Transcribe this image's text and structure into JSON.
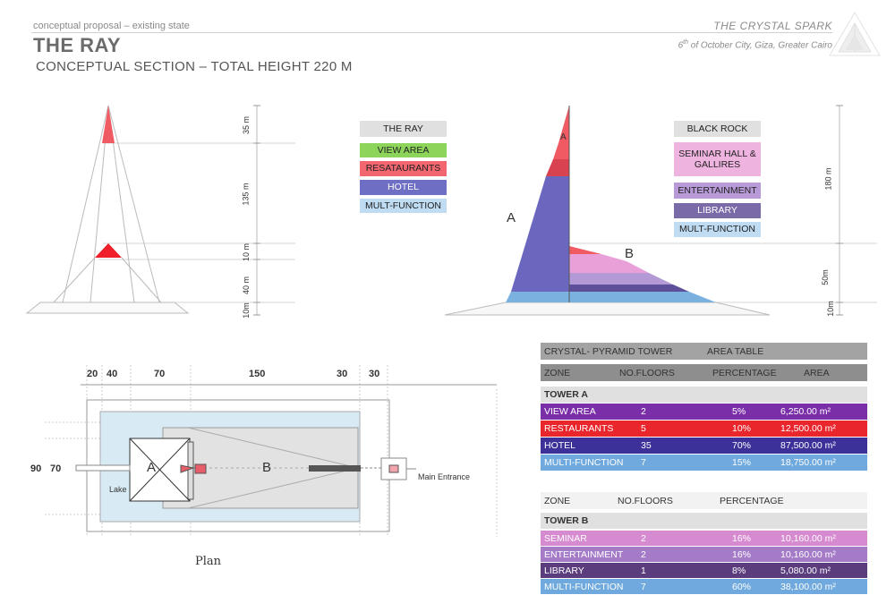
{
  "header": {
    "subtitle": "conceptual proposal – existing state",
    "title": "THE RAY",
    "section": "CONCEPTUAL SECTION – TOTAL HEIGHT 220 M"
  },
  "brand": {
    "title": "THE CRYSTAL SPARK",
    "location_sup": "th",
    "location_pre": "6",
    "location_post": " of October City, Giza, Greater Cairo"
  },
  "legend_ray": {
    "title": "THE RAY",
    "items": [
      "VIEW AREA",
      "RESATAURANTS",
      "HOTEL",
      "MULT-FUNCTION"
    ]
  },
  "legend_rock": {
    "title": "BLACK ROCK",
    "items": [
      "SEMINAR HALL & GALLIRES",
      "ENTERTAINMENT",
      "LIBRARY",
      "MULT-FUNCTION"
    ]
  },
  "section_dims": {
    "ray": [
      "35 m",
      "135 m",
      "10 m",
      "40 m",
      "10m"
    ],
    "rock": [
      "180 m",
      "50m",
      "10m"
    ],
    "tower_a": "A",
    "tower_b": "B",
    "tower_a_small": "A"
  },
  "plan": {
    "label": "Plan",
    "top_dims": [
      "20",
      "40",
      "70",
      "150",
      "30",
      "30"
    ],
    "side_dims": [
      "90",
      "70"
    ],
    "lake": "Lake",
    "a": "A",
    "b": "B",
    "entrance": "Main Entrance"
  },
  "table": {
    "header1": [
      "CRYSTAL- PYRAMID TOWER",
      "AREA TABLE"
    ],
    "header2": [
      "ZONE",
      "NO.FLOORS",
      "PERCENTAGE",
      "AREA"
    ],
    "tower_a_title": "TOWER A",
    "tower_a_rows": [
      {
        "zone": "VIEW AREA",
        "floors": "2",
        "pct": "5%",
        "area": "6,250.00 m²"
      },
      {
        "zone": "RESTAURANTS",
        "floors": "5",
        "pct": "10%",
        "area": "12,500.00 m²"
      },
      {
        "zone": "HOTEL",
        "floors": "35",
        "pct": "70%",
        "area": "87,500.00 m²"
      },
      {
        "zone": "MULTI-FUNCTION",
        "floors": "7",
        "pct": "15%",
        "area": "18,750.00 m²"
      }
    ],
    "header3": [
      "ZONE",
      "NO.FLOORS",
      "PERCENTAGE"
    ],
    "tower_b_title": "TOWER B",
    "tower_b_rows": [
      {
        "zone": "SEMINAR",
        "floors": "2",
        "pct": "16%",
        "area": "10,160.00 m²"
      },
      {
        "zone": "ENTERTAINMENT",
        "floors": "2",
        "pct": "16%",
        "area": "10,160.00 m²"
      },
      {
        "zone": "LIBRARY",
        "floors": "1",
        "pct": "8%",
        "area": "5,080.00 m²"
      },
      {
        "zone": "MULTI-FUNCTION",
        "floors": "7",
        "pct": "60%",
        "area": "38,100.00 m²"
      }
    ]
  },
  "colors": {
    "view": "#8cd45a",
    "restaurant": "#f26670",
    "hotel": "#6e6ec4",
    "multi": "#8fc3ea",
    "seminar": "#efb3e0",
    "entertain": "#b89ad8",
    "library": "#7a6aa8",
    "row_view": "#7a2fa8",
    "row_rest": "#e8262c",
    "row_hotel": "#3b3199",
    "row_multi": "#6fa9de",
    "row_seminar": "#d68ad0",
    "row_ent": "#a57bc8",
    "row_lib": "#5b3d7e",
    "row_multi_b": "#6fa9de",
    "hdr_grey": "#a0a0a0",
    "hdr_dark": "#8a8a8a"
  }
}
